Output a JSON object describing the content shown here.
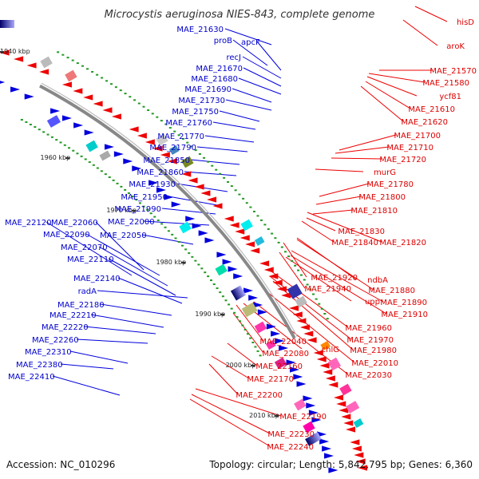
{
  "title": "Microcystis aeruginosa NIES-843, complete genome",
  "footer": {
    "accession": "Accession: NC_010296",
    "topology": "Topology: circular; Length: 5,842,795 bp; Genes: 6,360"
  },
  "kbp_ticks": [
    "1940 kbp",
    "1950 kbp",
    "1960 kbp",
    "1970 kbp",
    "1980 kbp",
    "1990 kbp",
    "2000 kbp",
    "2010 kbp"
  ],
  "left_labels": [
    "MAE_21630",
    "proB",
    "apcF",
    "recJ",
    "MAE_21670",
    "MAE_21680",
    "MAE_21690",
    "MAE_21730",
    "MAE_21750",
    "MAE_21760",
    "MAE_21770",
    "MAE_21790",
    "MAE_21850",
    "MAE_21860",
    "MAE_21930",
    "MAE_21950",
    "MAE_21990",
    "MAE_22120",
    "MAE_22060",
    "MAE_22000",
    "MAE_22090",
    "MAE_22050",
    "MAE_22070",
    "MAE_22110",
    "MAE_22140",
    "radA",
    "MAE_22180",
    "MAE_22210",
    "MAE_22220",
    "MAE_22260",
    "MAE_22310",
    "MAE_22380",
    "MAE_22410"
  ],
  "right_labels": [
    "hisD",
    "aroK",
    "MAE_21570",
    "MAE_21580",
    "ycf81",
    "MAE_21610",
    "MAE_21620",
    "MAE_21700",
    "MAE_21710",
    "MAE_21720",
    "murG",
    "MAE_21780",
    "MAE_21800",
    "MAE_21810",
    "MAE_21830",
    "MAE_21840",
    "MAE_21820",
    "ndbA",
    "MAE_21920",
    "MAE_21880",
    "MAE_21940",
    "upp",
    "MAE_21890",
    "MAE_21910",
    "MAE_21960",
    "MAE_21970",
    "MAE_22040",
    "chlG",
    "MAE_21980",
    "MAE_22080",
    "MAE_22010",
    "MAE_22160",
    "MAE_22030",
    "MAE_22170",
    "MAE_22200",
    "MAE_22190",
    "MAE_22230",
    "MAE_22240"
  ],
  "colors": {
    "forward": "#0000dd",
    "reverse": "#ee0000",
    "backbone": "#888888",
    "tick": "#229922"
  }
}
